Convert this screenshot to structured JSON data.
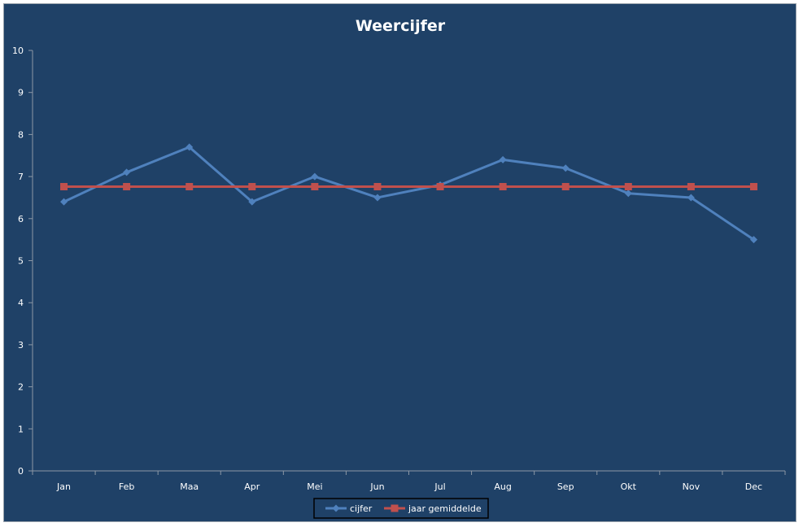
{
  "chart_data": {
    "type": "line",
    "title": "Weercijfer",
    "xlabel": "",
    "ylabel": "",
    "categories": [
      "Jan",
      "Feb",
      "Maa",
      "Apr",
      "Mei",
      "Jun",
      "Jul",
      "Aug",
      "Sep",
      "Okt",
      "Nov",
      "Dec"
    ],
    "ylim": [
      0,
      10
    ],
    "yticks": [
      0,
      1,
      2,
      3,
      4,
      5,
      6,
      7,
      8,
      9,
      10
    ],
    "grid": false,
    "legend_position": "bottom",
    "series": [
      {
        "name": "cijfer",
        "color": "#4f81bd",
        "marker": "diamond",
        "values": [
          6.4,
          7.1,
          7.7,
          6.4,
          7.0,
          6.5,
          6.8,
          7.4,
          7.2,
          6.6,
          6.5,
          5.5
        ]
      },
      {
        "name": "jaar gemiddelde",
        "color": "#c0504d",
        "marker": "square",
        "values": [
          6.76,
          6.76,
          6.76,
          6.76,
          6.76,
          6.76,
          6.76,
          6.76,
          6.76,
          6.76,
          6.76,
          6.76
        ]
      }
    ]
  },
  "colors": {
    "background": "#1f4167",
    "axis": "#8c98a6",
    "text": "#ffffff"
  }
}
